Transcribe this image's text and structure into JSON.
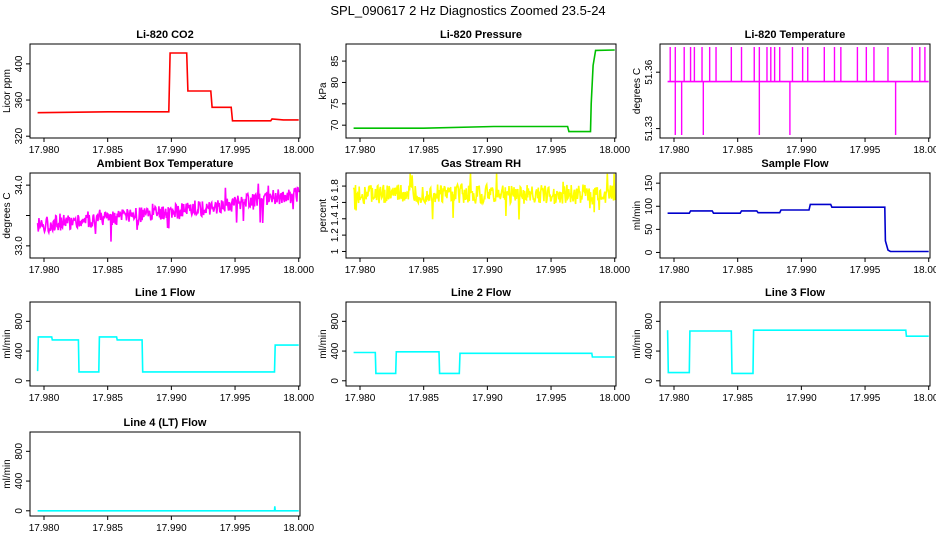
{
  "figure": {
    "title": "SPL_090617  2 Hz Diagnostics Zoomed 23.5-24"
  },
  "chart_data": [
    {
      "id": "co2",
      "type": "line",
      "title": "Li-820 CO2",
      "ylabel": "Licor ppm",
      "color": "#ff0000",
      "xlim": [
        17.9789,
        18.0001
      ],
      "ylim": [
        318,
        422
      ],
      "yticks": [
        320,
        360,
        400
      ],
      "xticks": [
        "17.980",
        "17.985",
        "17.990",
        "17.995",
        "18.000"
      ],
      "x": [
        17.9795,
        17.985,
        17.9898,
        17.9899,
        17.9912,
        17.9913,
        17.9931,
        17.9932,
        17.9947,
        17.9948,
        17.9978,
        17.9979,
        17.9988,
        18.0
      ],
      "y": [
        346,
        347,
        347,
        412,
        412,
        370,
        370,
        352,
        352,
        337,
        337,
        339,
        338,
        338
      ]
    },
    {
      "id": "pressure",
      "type": "line",
      "title": "Li-820 Pressure",
      "ylabel": "kPa",
      "color": "#00c000",
      "xlim": [
        17.9789,
        18.0001
      ],
      "ylim": [
        67,
        89
      ],
      "yticks": [
        70,
        75,
        80,
        85
      ],
      "xticks": [
        "17.980",
        "17.985",
        "17.990",
        "17.995",
        "18.000"
      ],
      "x": [
        17.9795,
        17.985,
        17.9905,
        17.9963,
        17.9964,
        17.9981,
        17.99815,
        17.9983,
        17.9985,
        18.0
      ],
      "y": [
        69.3,
        69.3,
        69.7,
        69.7,
        68.5,
        68.5,
        75,
        84,
        87.5,
        87.6
      ]
    },
    {
      "id": "licor_temp",
      "type": "line",
      "title": "Li-820 Temperature",
      "ylabel": "degrees C",
      "color": "#ff00ff",
      "xlim": [
        17.9789,
        18.0001
      ],
      "ylim": [
        51.325,
        51.375
      ],
      "yticks": [
        51.33,
        51.36
      ],
      "xticks": [
        "17.980",
        "17.985",
        "17.990",
        "17.995",
        "18.000"
      ],
      "x": [
        17.9795,
        18.0
      ],
      "y": [
        51.355,
        51.355
      ],
      "spikes_up": [
        17.9797,
        17.9801,
        17.9808,
        17.9813,
        17.9816,
        17.9822,
        17.9828,
        17.9833,
        17.9845,
        17.9853,
        17.9863,
        17.9867,
        17.9873,
        17.9876,
        17.9879,
        17.9883,
        17.9893,
        17.9901,
        17.9905,
        17.9918,
        17.9926,
        17.9931,
        17.9944,
        17.9951,
        17.9957,
        17.9968,
        17.9987,
        17.9993,
        17.9997
      ],
      "spikes_down": [
        17.9801,
        17.9806,
        17.9823,
        17.9867,
        17.9891,
        17.9974
      ]
    },
    {
      "id": "box_temp",
      "type": "line",
      "title": "Ambient Box Temperature",
      "ylabel": "degrees C",
      "color": "#ff00ff",
      "xlim": [
        17.9789,
        18.0001
      ],
      "ylim": [
        32.8,
        34.2
      ],
      "yticks": [
        33.0,
        33.5,
        34.0
      ],
      "ytick_labels": [
        "33.0",
        "",
        "34.0"
      ],
      "xticks": [
        "17.980",
        "17.985",
        "17.990",
        "17.995",
        "18.000"
      ],
      "x": [
        17.9795,
        17.985,
        17.99,
        17.995,
        18.0
      ],
      "y": [
        33.35,
        33.45,
        33.55,
        33.7,
        33.85
      ],
      "noise": 0.13
    },
    {
      "id": "rh",
      "type": "line",
      "title": "Gas Stream RH",
      "ylabel": "percent",
      "color": "#ffff00",
      "xlim": [
        17.9789,
        18.0001
      ],
      "ylim": [
        0.92,
        1.96
      ],
      "yticks": [
        1.0,
        1.2,
        1.4,
        1.6,
        1.8
      ],
      "xticks": [
        "17.980",
        "17.985",
        "17.990",
        "17.995",
        "18.000"
      ],
      "x": [
        17.9795,
        18.0
      ],
      "y": [
        1.7,
        1.7
      ],
      "noise": 0.12
    },
    {
      "id": "sample_flow",
      "type": "line",
      "title": "Sample Flow",
      "ylabel": "ml/min",
      "color": "#0000cc",
      "xlim": [
        17.9789,
        18.0001
      ],
      "ylim": [
        -12,
        172
      ],
      "yticks": [
        0,
        50,
        100,
        150
      ],
      "xticks": [
        "17.980",
        "17.985",
        "17.990",
        "17.995",
        "18.000"
      ],
      "x": [
        17.9795,
        17.9812,
        17.9813,
        17.983,
        17.9831,
        17.9852,
        17.9853,
        17.9865,
        17.9866,
        17.9883,
        17.9884,
        17.9906,
        17.9907,
        17.9923,
        17.9924,
        17.99655,
        17.9966,
        17.9968,
        17.997,
        18.0
      ],
      "y": [
        85,
        85,
        90,
        90,
        85,
        85,
        90,
        90,
        86,
        86,
        92,
        92,
        104,
        104,
        98,
        98,
        25,
        5,
        2,
        2
      ]
    },
    {
      "id": "line1",
      "type": "line",
      "title": "Line 1 Flow",
      "ylabel": "ml/min",
      "color": "#00ffff",
      "xlim": [
        17.9789,
        18.0001
      ],
      "ylim": [
        -70,
        1060
      ],
      "yticks": [
        0,
        400,
        800
      ],
      "xticks": [
        "17.980",
        "17.985",
        "17.990",
        "17.995",
        "18.000"
      ],
      "x": [
        17.9795,
        17.97955,
        17.9806,
        17.98065,
        17.9827,
        17.98275,
        17.9843,
        17.98435,
        17.9857,
        17.98575,
        17.9877,
        17.98775,
        17.9981,
        17.99815,
        18.0
      ],
      "y": [
        130,
        590,
        590,
        550,
        550,
        120,
        120,
        590,
        590,
        550,
        550,
        120,
        120,
        480,
        480
      ]
    },
    {
      "id": "line2",
      "type": "line",
      "title": "Line 2 Flow",
      "ylabel": "ml/min",
      "color": "#00ffff",
      "xlim": [
        17.9789,
        18.0001
      ],
      "ylim": [
        -70,
        1060
      ],
      "yticks": [
        0,
        400,
        800
      ],
      "xticks": [
        "17.980",
        "17.985",
        "17.990",
        "17.995",
        "18.000"
      ],
      "x": [
        17.9795,
        17.9812,
        17.98125,
        17.9828,
        17.98285,
        17.9862,
        17.98625,
        17.9878,
        17.98785,
        17.9982,
        17.99825,
        18.0
      ],
      "y": [
        380,
        380,
        100,
        100,
        390,
        390,
        100,
        100,
        370,
        370,
        320,
        320
      ]
    },
    {
      "id": "line3",
      "type": "line",
      "title": "Line 3 Flow",
      "ylabel": "ml/min",
      "color": "#00ffff",
      "xlim": [
        17.9789,
        18.0001
      ],
      "ylim": [
        -70,
        1060
      ],
      "yticks": [
        0,
        400,
        800
      ],
      "xticks": [
        "17.980",
        "17.985",
        "17.990",
        "17.995",
        "18.000"
      ],
      "x": [
        17.9795,
        17.97955,
        17.9812,
        17.98125,
        17.9845,
        17.98455,
        17.9862,
        17.98625,
        17.9982,
        17.99825,
        18.0
      ],
      "y": [
        680,
        110,
        110,
        670,
        670,
        100,
        100,
        680,
        680,
        600,
        600
      ]
    },
    {
      "id": "line4",
      "type": "line",
      "title": "Line 4 (LT) Flow",
      "ylabel": "ml/min",
      "color": "#00ffff",
      "xlim": [
        17.9789,
        18.0001
      ],
      "ylim": [
        -70,
        1060
      ],
      "yticks": [
        0,
        400,
        800
      ],
      "xticks": [
        "17.980",
        "17.985",
        "17.990",
        "17.995",
        "18.000"
      ],
      "x": [
        17.9795,
        17.9981,
        17.99812,
        17.99815,
        17.9983,
        18.0
      ],
      "y": [
        0,
        0,
        60,
        0,
        0,
        0
      ]
    }
  ]
}
